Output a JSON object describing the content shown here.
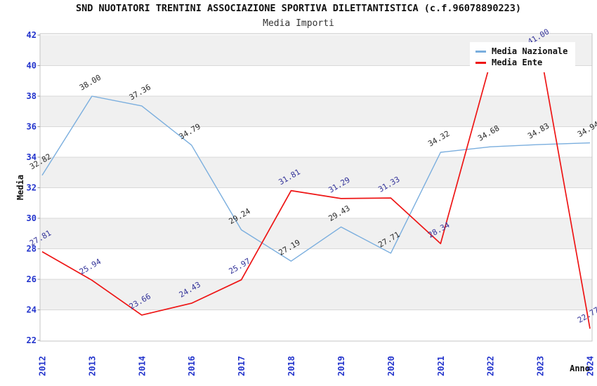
{
  "header": {
    "title": "SND NUOTATORI TRENTINI ASSOCIAZIONE SPORTIVA DILETTANTISTICA (c.f.96078890223)",
    "subtitle": "Media Importi"
  },
  "legend": {
    "items": [
      {
        "label": "Media Nazionale",
        "color": "#7aaede"
      },
      {
        "label": "Media Ente",
        "color": "#ee1515"
      }
    ]
  },
  "axes": {
    "y_label": "Media",
    "x_label": "Anno",
    "y_ticks": [
      22,
      24,
      26,
      28,
      30,
      32,
      34,
      36,
      38,
      40,
      42
    ],
    "tick_color": "#2233cc"
  },
  "chart_data": {
    "type": "line",
    "title": "Media Importi",
    "categories": [
      "2012",
      "2013",
      "2014",
      "2016",
      "2017",
      "2018",
      "2019",
      "2020",
      "2021",
      "2022",
      "2023",
      "2024"
    ],
    "series": [
      {
        "name": "Media Nazionale",
        "color": "#7aaede",
        "label_color": "#2b2b2b",
        "values": [
          32.82,
          38.0,
          37.36,
          34.79,
          29.24,
          27.19,
          29.43,
          27.71,
          34.32,
          34.68,
          34.83,
          34.94
        ],
        "labels": [
          "32.82",
          "38.00",
          "37.36",
          "34.79",
          "29.24",
          "27.19",
          "29.43",
          "27.71",
          "34.32",
          "34.68",
          "34.83",
          "34.94"
        ]
      },
      {
        "name": "Media Ente",
        "color": "#ee1515",
        "label_color": "#333399",
        "values": [
          27.81,
          25.94,
          23.66,
          24.43,
          25.97,
          31.81,
          31.29,
          31.33,
          28.34,
          40.2,
          41.0,
          22.77
        ],
        "labels": [
          "27.81",
          "25.94",
          "23.66",
          "24.43",
          "25.97",
          "31.81",
          "31.29",
          "31.33",
          "28.34",
          null,
          "41.00",
          "22.77"
        ]
      }
    ],
    "xlabel": "Anno",
    "ylabel": "Media",
    "ylim": [
      22,
      42
    ],
    "ytick_step": 2,
    "grid": "horizontal-bands",
    "band_color": "#f0f0f0",
    "gridline_color": "#d9d9d9",
    "border_color": "#c4c4c4",
    "legend_position": "top-right"
  }
}
